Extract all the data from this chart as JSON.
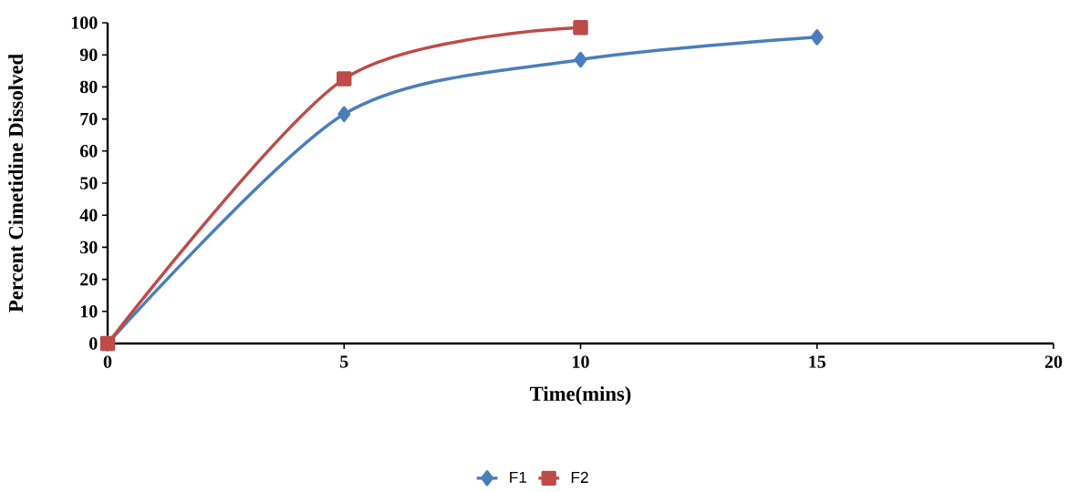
{
  "chart_data": {
    "type": "line",
    "xlabel": "Time(mins)",
    "ylabel": "Percent Cimetidine Dissolved",
    "xlim": [
      0,
      20
    ],
    "xticks": [
      0,
      5,
      10,
      15,
      20
    ],
    "ylim": [
      0,
      100
    ],
    "yticks": [
      0,
      10,
      20,
      30,
      40,
      50,
      60,
      70,
      80,
      90,
      100
    ],
    "grid": false,
    "legend": "bottom",
    "line_style": "solid",
    "series": [
      {
        "name": "F1",
        "color": "#4a7ebb",
        "marker": "diamond",
        "x": [
          0,
          5,
          10,
          15
        ],
        "values": [
          0,
          71.5,
          88.5,
          95.5
        ]
      },
      {
        "name": "F2",
        "color": "#be4b48",
        "marker": "square",
        "x": [
          0,
          5,
          10
        ],
        "values": [
          0,
          82.5,
          98.5
        ]
      }
    ]
  }
}
